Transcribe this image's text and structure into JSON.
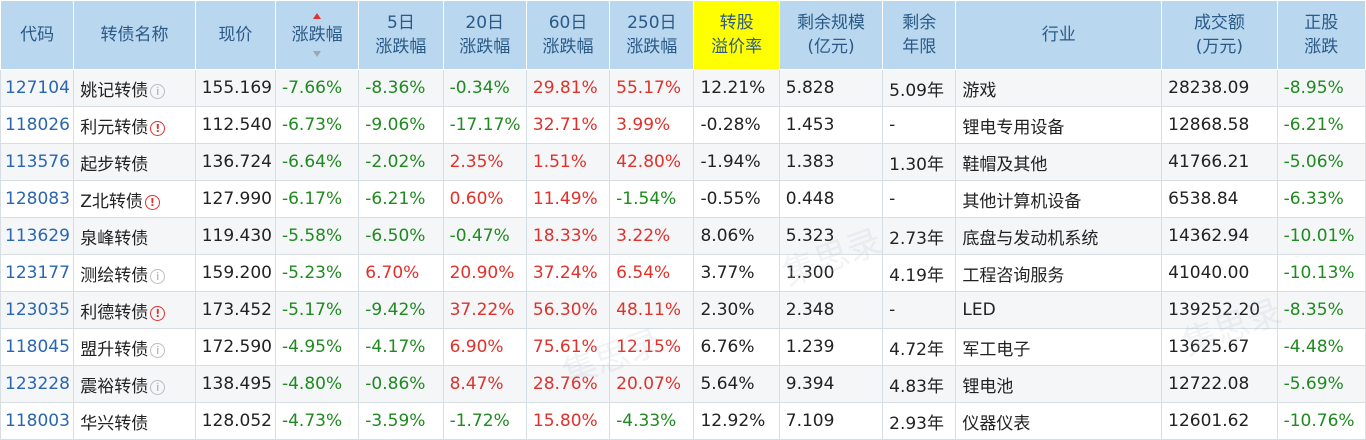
{
  "headers": [
    "代码",
    "转债名称",
    "现价",
    "涨跌幅",
    "5日\n涨跌幅",
    "20日\n涨跌幅",
    "60日\n涨跌幅",
    "250日\n涨跌幅",
    "转股\n溢价率",
    "剩余规模\n(亿元)",
    "剩余\n年限",
    "行业",
    "成交额\n(万元)",
    "正股\n涨跌"
  ],
  "rows": [
    {
      "code": "127104",
      "name": "姚记转债",
      "icon": "info-icon",
      "price": "155.169",
      "chg": "-7.66%",
      "chg5": "-8.36%",
      "chg20": "-0.34%",
      "chg60": "29.81%",
      "chg250": "55.17%",
      "premium": "12.21%",
      "remain": "5.828",
      "years": "5.09年",
      "industry": "游戏",
      "turnover": "28238.09",
      "stock_chg": "-8.95%"
    },
    {
      "code": "118026",
      "name": "利元转债",
      "icon": "alert-icon",
      "price": "112.540",
      "chg": "-6.73%",
      "chg5": "-9.06%",
      "chg20": "-17.17%",
      "chg60": "32.71%",
      "chg250": "3.99%",
      "premium": "-0.28%",
      "remain": "1.453",
      "years": "-",
      "industry": "锂电专用设备",
      "turnover": "12868.58",
      "stock_chg": "-6.21%"
    },
    {
      "code": "113576",
      "name": "起步转债",
      "icon": "",
      "price": "136.724",
      "chg": "-6.64%",
      "chg5": "-2.02%",
      "chg20": "2.35%",
      "chg60": "1.51%",
      "chg250": "42.80%",
      "premium": "-1.94%",
      "remain": "1.383",
      "years": "1.30年",
      "industry": "鞋帽及其他",
      "turnover": "41766.21",
      "stock_chg": "-5.06%"
    },
    {
      "code": "128083",
      "name": "Z北转债",
      "icon": "alert-icon",
      "price": "127.990",
      "chg": "-6.17%",
      "chg5": "-6.21%",
      "chg20": "0.60%",
      "chg60": "11.49%",
      "chg250": "-1.54%",
      "premium": "-0.55%",
      "remain": "0.448",
      "years": "-",
      "industry": "其他计算机设备",
      "turnover": "6538.84",
      "stock_chg": "-6.33%"
    },
    {
      "code": "113629",
      "name": "泉峰转债",
      "icon": "",
      "price": "119.430",
      "chg": "-5.58%",
      "chg5": "-6.50%",
      "chg20": "-0.47%",
      "chg60": "18.33%",
      "chg250": "3.22%",
      "premium": "8.06%",
      "remain": "5.323",
      "years": "2.73年",
      "industry": "底盘与发动机系统",
      "turnover": "14362.94",
      "stock_chg": "-10.01%"
    },
    {
      "code": "123177",
      "name": "测绘转债",
      "icon": "info-icon",
      "price": "159.200",
      "chg": "-5.23%",
      "chg5": "6.70%",
      "chg20": "20.90%",
      "chg60": "37.24%",
      "chg250": "6.54%",
      "premium": "3.77%",
      "remain": "1.300",
      "years": "4.19年",
      "industry": "工程咨询服务",
      "turnover": "41040.00",
      "stock_chg": "-10.13%"
    },
    {
      "code": "123035",
      "name": "利德转债",
      "icon": "alert-icon",
      "price": "173.452",
      "chg": "-5.17%",
      "chg5": "-9.42%",
      "chg20": "37.22%",
      "chg60": "56.30%",
      "chg250": "48.11%",
      "premium": "2.30%",
      "remain": "2.348",
      "years": "-",
      "industry": "LED",
      "turnover": "139252.20",
      "stock_chg": "-8.35%"
    },
    {
      "code": "118045",
      "name": "盟升转债",
      "icon": "info-icon",
      "price": "172.590",
      "chg": "-4.95%",
      "chg5": "-4.17%",
      "chg20": "6.90%",
      "chg60": "75.61%",
      "chg250": "12.15%",
      "premium": "6.76%",
      "remain": "1.239",
      "years": "4.72年",
      "industry": "军工电子",
      "turnover": "13625.67",
      "stock_chg": "-4.48%"
    },
    {
      "code": "123228",
      "name": "震裕转债",
      "icon": "info-icon",
      "price": "138.495",
      "chg": "-4.80%",
      "chg5": "-0.86%",
      "chg20": "8.47%",
      "chg60": "28.76%",
      "chg250": "20.07%",
      "premium": "5.64%",
      "remain": "9.394",
      "years": "4.83年",
      "industry": "锂电池",
      "turnover": "12722.08",
      "stock_chg": "-5.69%"
    },
    {
      "code": "118003",
      "name": "华兴转债",
      "icon": "",
      "price": "128.052",
      "chg": "-4.73%",
      "chg5": "-3.59%",
      "chg20": "-1.72%",
      "chg60": "15.80%",
      "chg250": "-4.33%",
      "premium": "12.92%",
      "remain": "7.109",
      "years": "2.93年",
      "industry": "仪器仪表",
      "turnover": "12601.62",
      "stock_chg": "-10.76%"
    }
  ],
  "colors": {
    "header_bg": "#b9d7ef",
    "header_text": "#2b5a86",
    "highlight": "#ffff00",
    "up": "#e0312b",
    "down": "#1f8a1f",
    "code": "#2a66b0"
  }
}
